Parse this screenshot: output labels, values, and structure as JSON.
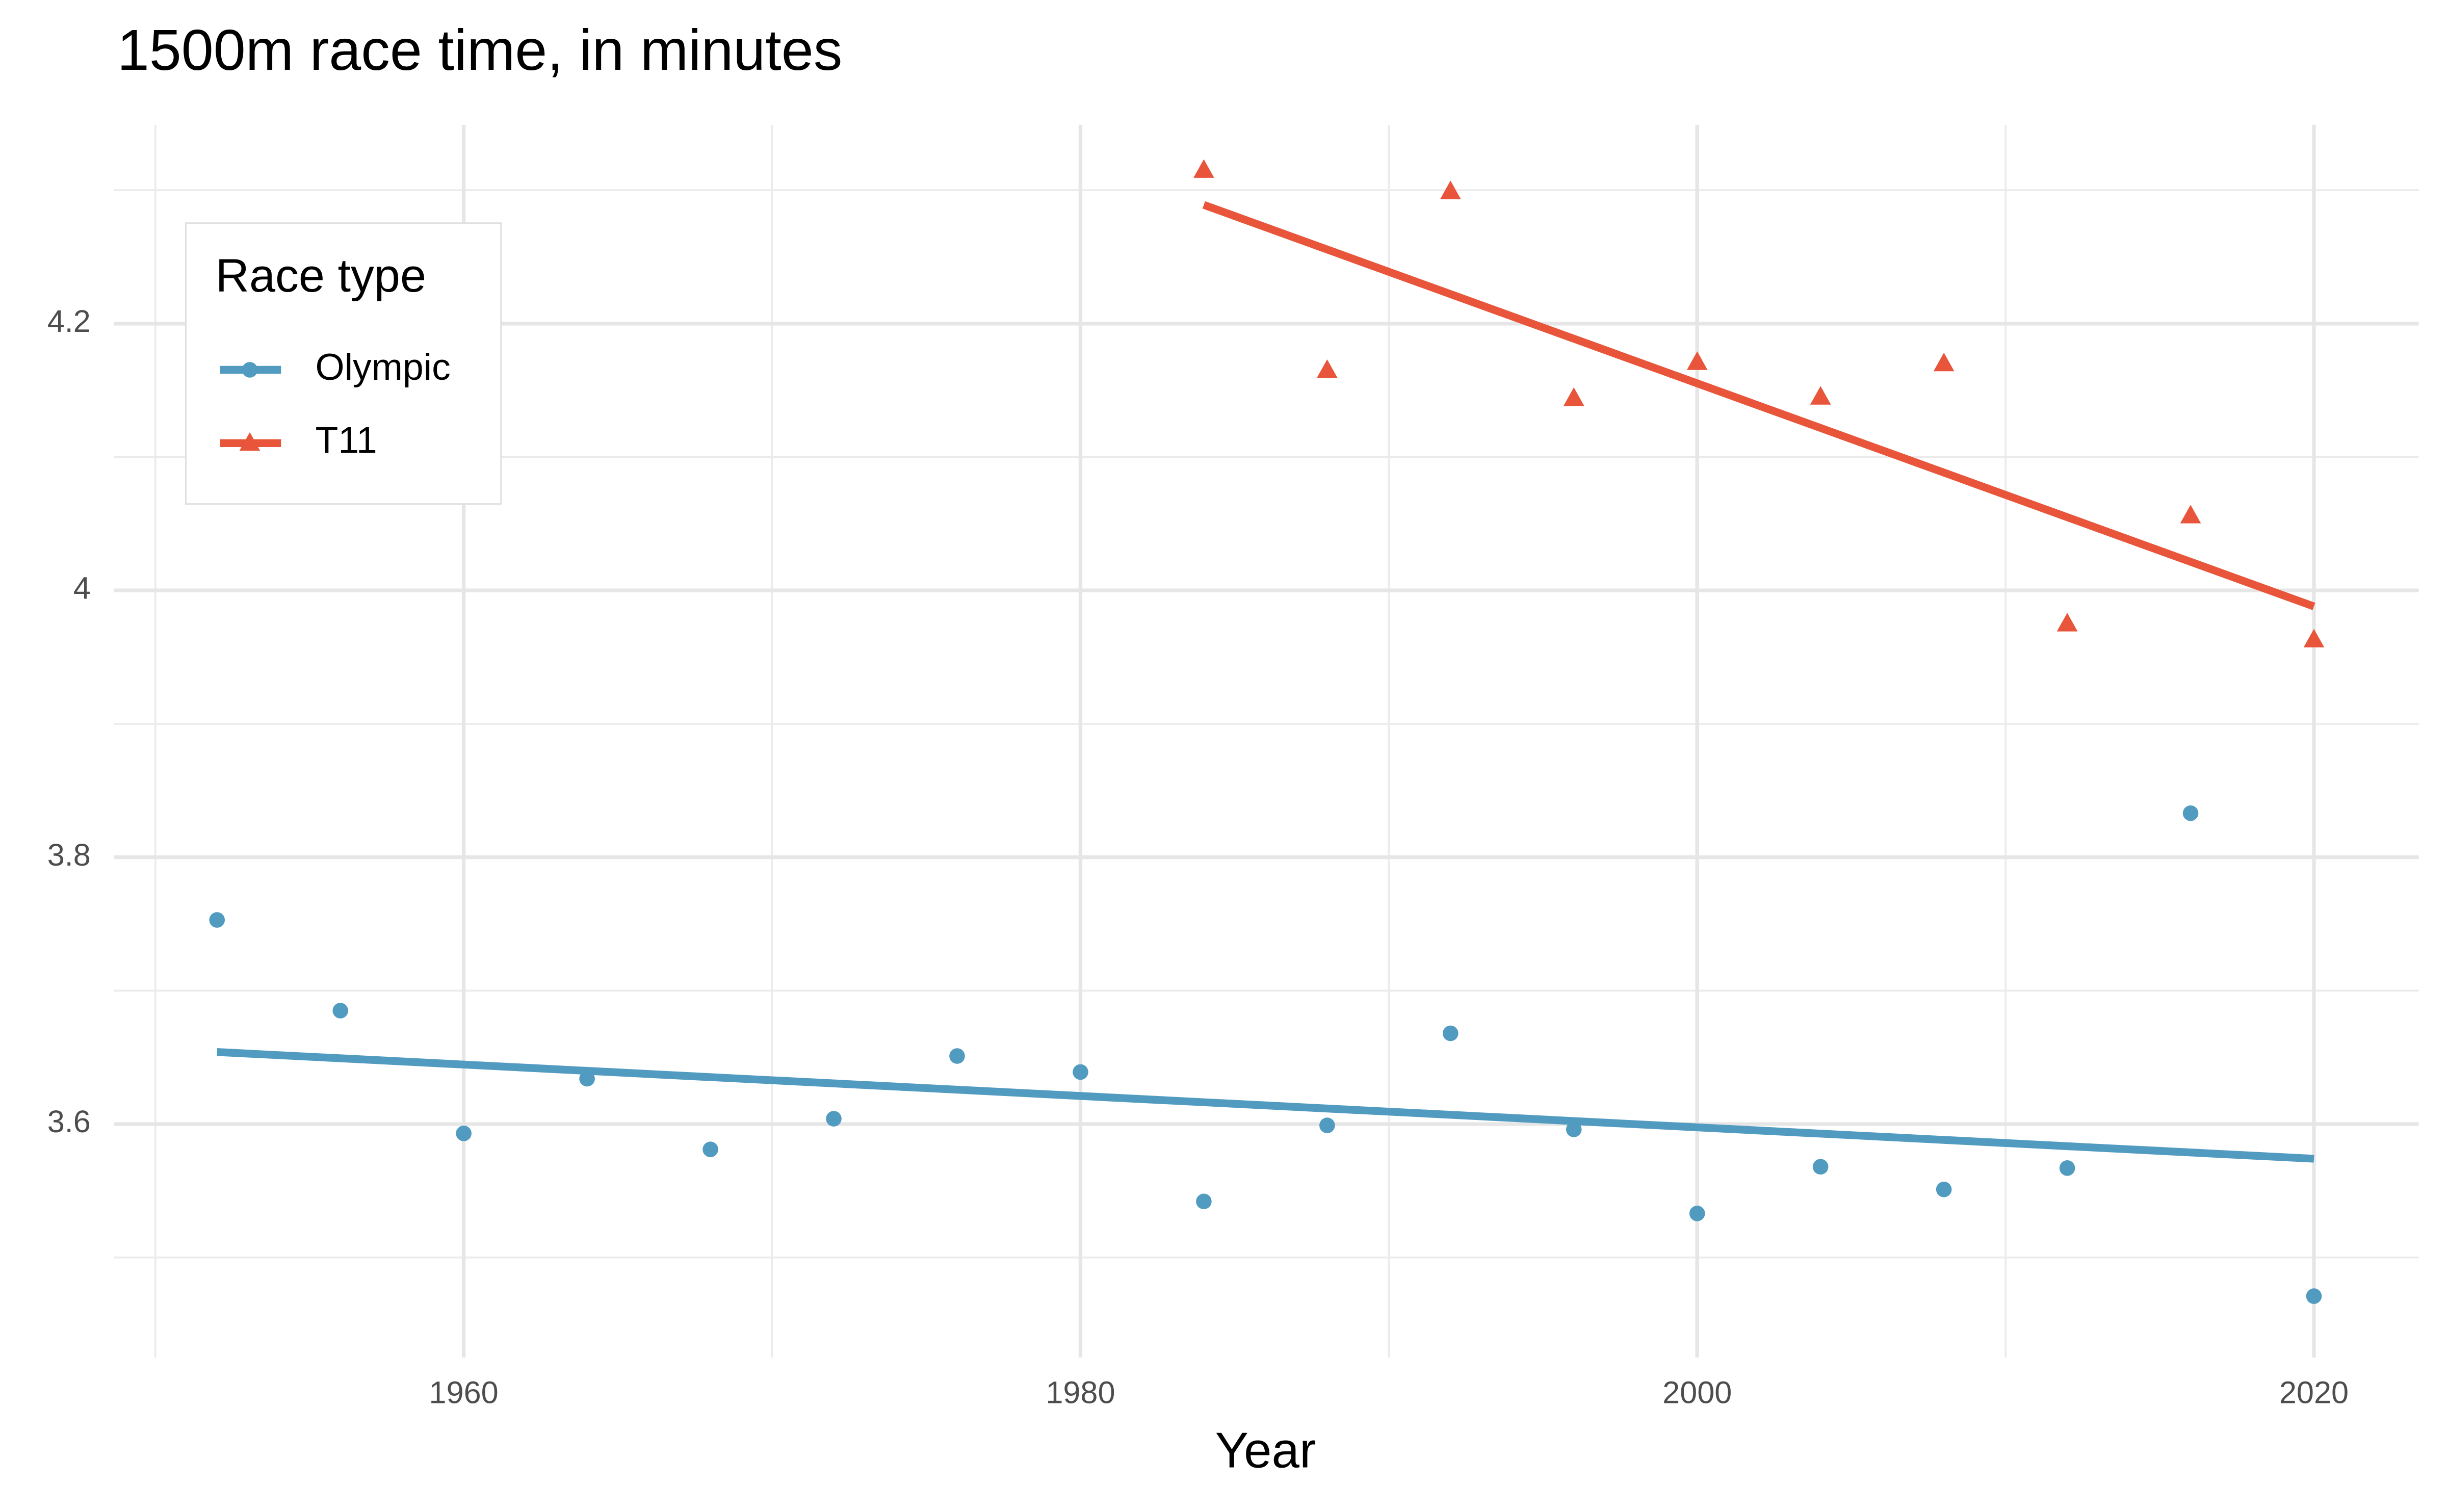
{
  "chart_data": {
    "type": "scatter",
    "title": "1500m race time, in minutes",
    "x_label": "Year",
    "legend_title": "Race type",
    "legend_position": "top-left",
    "grid": true,
    "xlim": [
      1948.66,
      2023.4
    ],
    "ylim": [
      3.425,
      4.349
    ],
    "xticks": [
      1960,
      1980,
      2000,
      2020
    ],
    "yticks": [
      3.6,
      3.8,
      4.0,
      4.2
    ],
    "x_minor_grid": [
      1950,
      1970,
      1990,
      2010
    ],
    "y_minor_grid": [
      3.5,
      3.7,
      3.9,
      4.1,
      4.3
    ],
    "series": [
      {
        "name": "Olympic",
        "color": "#529bc0",
        "marker": "circle",
        "x": [
          1952,
          1956,
          1960,
          1964,
          1968,
          1972,
          1976,
          1980,
          1984,
          1988,
          1992,
          1996,
          2000,
          2004,
          2008,
          2012,
          2016,
          2020
        ],
        "values": [
          3.753,
          3.685,
          3.593,
          3.634,
          3.581,
          3.604,
          3.651,
          3.639,
          3.542,
          3.599,
          3.668,
          3.596,
          3.533,
          3.568,
          3.551,
          3.567,
          3.833,
          3.471
        ],
        "trend": {
          "x": [
            1952,
            2020
          ],
          "values": [
            3.654,
            3.574
          ]
        }
      },
      {
        "name": "T11",
        "color": "#e8553a",
        "marker": "triangle",
        "x": [
          1984,
          1988,
          1992,
          1996,
          2000,
          2004,
          2008,
          2012,
          2016,
          2020
        ],
        "values": [
          4.315,
          4.165,
          4.299,
          4.144,
          4.171,
          4.145,
          4.17,
          3.975,
          4.056,
          3.963
        ],
        "trend": {
          "x": [
            1984,
            2020
          ],
          "values": [
            4.289,
            3.988
          ]
        }
      }
    ]
  }
}
